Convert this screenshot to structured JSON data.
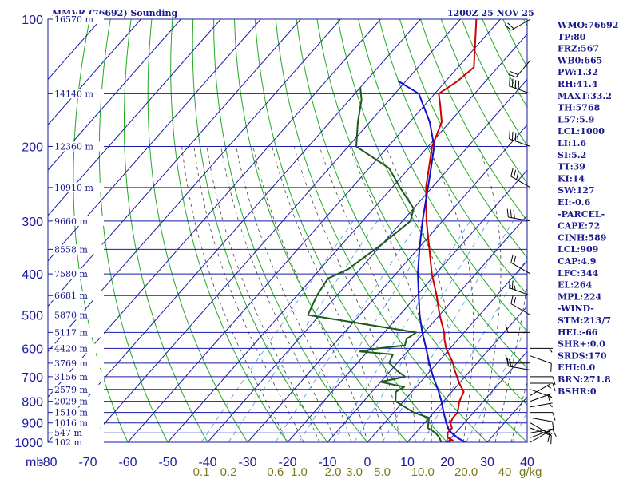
{
  "header": {
    "station": "MMVR (76692) Sounding",
    "time": "1200Z 25 NOV 25"
  },
  "indices": [
    "WMO:76692",
    "TP:80",
    "FRZ:567",
    "WB0:665",
    "PW:1.32",
    "RH:41.4",
    "MAXT:33.2",
    "TH:5768",
    "L57:5.9",
    "LCL:1000",
    "LI:1.6",
    "SI:5.2",
    "TT:39",
    "KI:14",
    "SW:127",
    "EI:-0.6",
    "-PARCEL-",
    "CAPE:72",
    "CINH:589",
    "LCL:909",
    "CAP:4.9",
    "LFC:344",
    "EL:264",
    "MPL:224",
    "-WIND-",
    "STM:213/7",
    "HEL:-66",
    "SHR+:0.0",
    "SRDS:170",
    "EHI:0.0",
    "BRN:271.8",
    "BSHR:0"
  ],
  "colors": {
    "isobar": "#1a1aa0",
    "isotherm": "#1a1aa0",
    "dry_adiabat": "#22aa22",
    "moist_adiabat": "#444444",
    "mixing_ratio": "#5aa0dd",
    "temperature": "#cc0000",
    "dewpoint": "#1f5a1f",
    "parcel": "#1010cc",
    "wind": "#000000"
  },
  "chart_data": {
    "type": "skew-t",
    "pressure_axis": {
      "unit_label": "mb",
      "scale": "log",
      "range": [
        1000,
        100
      ],
      "ticks": [
        "100",
        "200",
        "300",
        "400",
        "500",
        "600",
        "700",
        "800",
        "900",
        "1000"
      ],
      "values": [
        100,
        200,
        300,
        400,
        500,
        600,
        700,
        800,
        900,
        1000
      ]
    },
    "temperature_axis": {
      "range": [
        -80,
        40
      ],
      "ticks": [
        "-80",
        "-70",
        "-60",
        "-50",
        "-40",
        "-30",
        "-20",
        "-10",
        "0",
        "10",
        "20",
        "30",
        "40"
      ],
      "values": [
        -80,
        -70,
        -60,
        -50,
        -40,
        -30,
        -20,
        -10,
        0,
        10,
        20,
        30,
        40
      ]
    },
    "mixing_ratio_axis": {
      "unit_label": "g/kg",
      "ticks": [
        "0.1",
        "0.2",
        "0.6",
        "1.0",
        "2.0",
        "3.0",
        "5.0",
        "10.0",
        "20.0",
        "40"
      ],
      "values": [
        0.1,
        0.2,
        0.6,
        1.0,
        2.0,
        3.0,
        5.0,
        10.0,
        20.0,
        40.0
      ]
    },
    "height_labels": [
      {
        "p": 100,
        "label": "16570 m"
      },
      {
        "p": 150,
        "label": "14140 m"
      },
      {
        "p": 200,
        "label": "12360 m"
      },
      {
        "p": 250,
        "label": "10910 m"
      },
      {
        "p": 300,
        "label": "9660 m"
      },
      {
        "p": 350,
        "label": "8558 m"
      },
      {
        "p": 400,
        "label": "7580 m"
      },
      {
        "p": 450,
        "label": "6681 m"
      },
      {
        "p": 500,
        "label": "5870 m"
      },
      {
        "p": 550,
        "label": "5117 m"
      },
      {
        "p": 600,
        "label": "4420 m"
      },
      {
        "p": 650,
        "label": "3769 m"
      },
      {
        "p": 700,
        "label": "3156 m"
      },
      {
        "p": 750,
        "label": "2579 m"
      },
      {
        "p": 800,
        "label": "2029 m"
      },
      {
        "p": 850,
        "label": "1510 m"
      },
      {
        "p": 900,
        "label": "1016 m"
      },
      {
        "p": 950,
        "label": "547 m"
      },
      {
        "p": 1000,
        "label": "102 m"
      }
    ],
    "series": [
      {
        "name": "temperature",
        "points": [
          [
            1000,
            19.5
          ],
          [
            990,
            21
          ],
          [
            975,
            19
          ],
          [
            950,
            18
          ],
          [
            925,
            18
          ],
          [
            900,
            16.5
          ],
          [
            875,
            16
          ],
          [
            850,
            16
          ],
          [
            800,
            14
          ],
          [
            760,
            13
          ],
          [
            725,
            10
          ],
          [
            700,
            8
          ],
          [
            670,
            5.5
          ],
          [
            650,
            4
          ],
          [
            600,
            -1
          ],
          [
            570,
            -3.5
          ],
          [
            550,
            -5
          ],
          [
            500,
            -10
          ],
          [
            450,
            -15
          ],
          [
            400,
            -21
          ],
          [
            350,
            -27
          ],
          [
            300,
            -34
          ],
          [
            250,
            -41.5
          ],
          [
            200,
            -49
          ],
          [
            175,
            -52
          ],
          [
            160,
            -56
          ],
          [
            150,
            -59
          ],
          [
            140,
            -57
          ],
          [
            130,
            -56
          ],
          [
            100,
            -66
          ]
        ]
      },
      {
        "name": "dewpoint",
        "points": [
          [
            1000,
            18.5
          ],
          [
            975,
            17
          ],
          [
            950,
            15
          ],
          [
            925,
            12
          ],
          [
            900,
            11
          ],
          [
            875,
            10
          ],
          [
            850,
            5
          ],
          [
            800,
            -2
          ],
          [
            760,
            -4
          ],
          [
            740,
            -3
          ],
          [
            720,
            -10
          ],
          [
            700,
            -5
          ],
          [
            680,
            -8
          ],
          [
            650,
            -12
          ],
          [
            620,
            -13
          ],
          [
            610,
            -22
          ],
          [
            600,
            -18
          ],
          [
            590,
            -12
          ],
          [
            570,
            -13
          ],
          [
            550,
            -12
          ],
          [
            500,
            -43
          ],
          [
            450,
            -45
          ],
          [
            410,
            -46
          ],
          [
            390,
            -43
          ],
          [
            340,
            -40
          ],
          [
            300,
            -38
          ],
          [
            280,
            -40
          ],
          [
            250,
            -48
          ],
          [
            225,
            -55
          ],
          [
            200,
            -68
          ],
          [
            175,
            -73
          ],
          [
            155,
            -77
          ],
          [
            145,
            -80
          ]
        ]
      },
      {
        "name": "parcel",
        "points": [
          [
            1000,
            24.5
          ],
          [
            975,
            21.5
          ],
          [
            950,
            19
          ],
          [
            925,
            17
          ],
          [
            900,
            15.5
          ],
          [
            850,
            12.5
          ],
          [
            800,
            9.5
          ],
          [
            750,
            6
          ],
          [
            700,
            2
          ],
          [
            650,
            -2
          ],
          [
            600,
            -6
          ],
          [
            550,
            -10.5
          ],
          [
            500,
            -15
          ],
          [
            450,
            -19.5
          ],
          [
            400,
            -24.5
          ],
          [
            350,
            -29.5
          ],
          [
            300,
            -35
          ],
          [
            250,
            -41
          ],
          [
            225,
            -44.5
          ],
          [
            200,
            -48.5
          ],
          [
            175,
            -55
          ],
          [
            150,
            -64
          ],
          [
            140,
            -72
          ]
        ]
      }
    ],
    "wind_barbs": [
      {
        "p": 1000,
        "dir": 60,
        "spd": 5
      },
      {
        "p": 975,
        "dir": 70,
        "spd": 5
      },
      {
        "p": 950,
        "dir": 80,
        "spd": 10
      },
      {
        "p": 925,
        "dir": 110,
        "spd": 10
      },
      {
        "p": 900,
        "dir": 120,
        "spd": 10
      },
      {
        "p": 875,
        "dir": 100,
        "spd": 10
      },
      {
        "p": 850,
        "dir": 90,
        "spd": 10
      },
      {
        "p": 825,
        "dir": 80,
        "spd": 5
      },
      {
        "p": 800,
        "dir": 70,
        "spd": 5
      },
      {
        "p": 775,
        "dir": 60,
        "spd": 5
      },
      {
        "p": 750,
        "dir": 110,
        "spd": 5
      },
      {
        "p": 725,
        "dir": 90,
        "spd": 10
      },
      {
        "p": 700,
        "dir": 90,
        "spd": 10
      },
      {
        "p": 675,
        "dir": 280,
        "spd": 15
      },
      {
        "p": 650,
        "dir": 270,
        "spd": 15
      },
      {
        "p": 625,
        "dir": 110,
        "spd": 10
      },
      {
        "p": 600,
        "dir": 90,
        "spd": 5
      },
      {
        "p": 550,
        "dir": 270,
        "spd": 10
      },
      {
        "p": 500,
        "dir": 300,
        "spd": 20
      },
      {
        "p": 450,
        "dir": 290,
        "spd": 25
      },
      {
        "p": 400,
        "dir": 300,
        "spd": 20
      },
      {
        "p": 300,
        "dir": 280,
        "spd": 30
      },
      {
        "p": 250,
        "dir": 300,
        "spd": 30
      },
      {
        "p": 200,
        "dir": 290,
        "spd": 35
      },
      {
        "p": 150,
        "dir": 290,
        "spd": 40
      },
      {
        "p": 125,
        "dir": 220,
        "spd": 20
      },
      {
        "p": 100,
        "dir": 240,
        "spd": 20
      }
    ]
  }
}
